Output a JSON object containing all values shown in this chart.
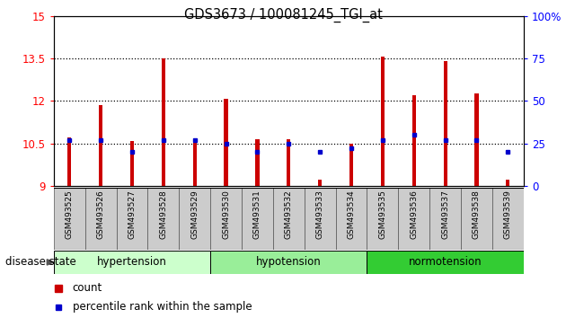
{
  "title": "GDS3673 / 100081245_TGI_at",
  "samples": [
    "GSM493525",
    "GSM493526",
    "GSM493527",
    "GSM493528",
    "GSM493529",
    "GSM493530",
    "GSM493531",
    "GSM493532",
    "GSM493533",
    "GSM493534",
    "GSM493535",
    "GSM493536",
    "GSM493537",
    "GSM493538",
    "GSM493539"
  ],
  "counts": [
    10.72,
    11.85,
    10.6,
    13.5,
    10.67,
    12.08,
    10.65,
    10.65,
    9.22,
    10.48,
    13.55,
    12.2,
    13.4,
    12.28,
    9.22
  ],
  "pct_right_axis": [
    27,
    27,
    20,
    27,
    27,
    25,
    20,
    25,
    20,
    22,
    27,
    30,
    27,
    27,
    20
  ],
  "ylim_left": [
    9,
    15
  ],
  "ylim_right": [
    0,
    100
  ],
  "yticks_left": [
    9,
    10.5,
    12,
    13.5,
    15
  ],
  "yticks_right": [
    0,
    25,
    50,
    75,
    100
  ],
  "ytick_labels_left": [
    "9",
    "10.5",
    "12",
    "13.5",
    "15"
  ],
  "ytick_labels_right": [
    "0",
    "25",
    "50",
    "75",
    "100%"
  ],
  "bar_color": "#cc0000",
  "dot_color": "#0000cc",
  "bar_bottom": 9,
  "bar_width": 0.12,
  "groups": [
    {
      "label": "hypertension",
      "start": 0,
      "end": 5,
      "color": "#ccffcc"
    },
    {
      "label": "hypotension",
      "start": 5,
      "end": 10,
      "color": "#99ee99"
    },
    {
      "label": "normotension",
      "start": 10,
      "end": 15,
      "color": "#33cc33"
    }
  ],
  "disease_state_label": "disease state",
  "legend_count_label": "count",
  "legend_percentile_label": "percentile rank within the sample",
  "gridline_values": [
    10.5,
    12,
    13.5
  ],
  "xticklabel_bg": "#cccccc",
  "xticklabel_border": "#888888"
}
